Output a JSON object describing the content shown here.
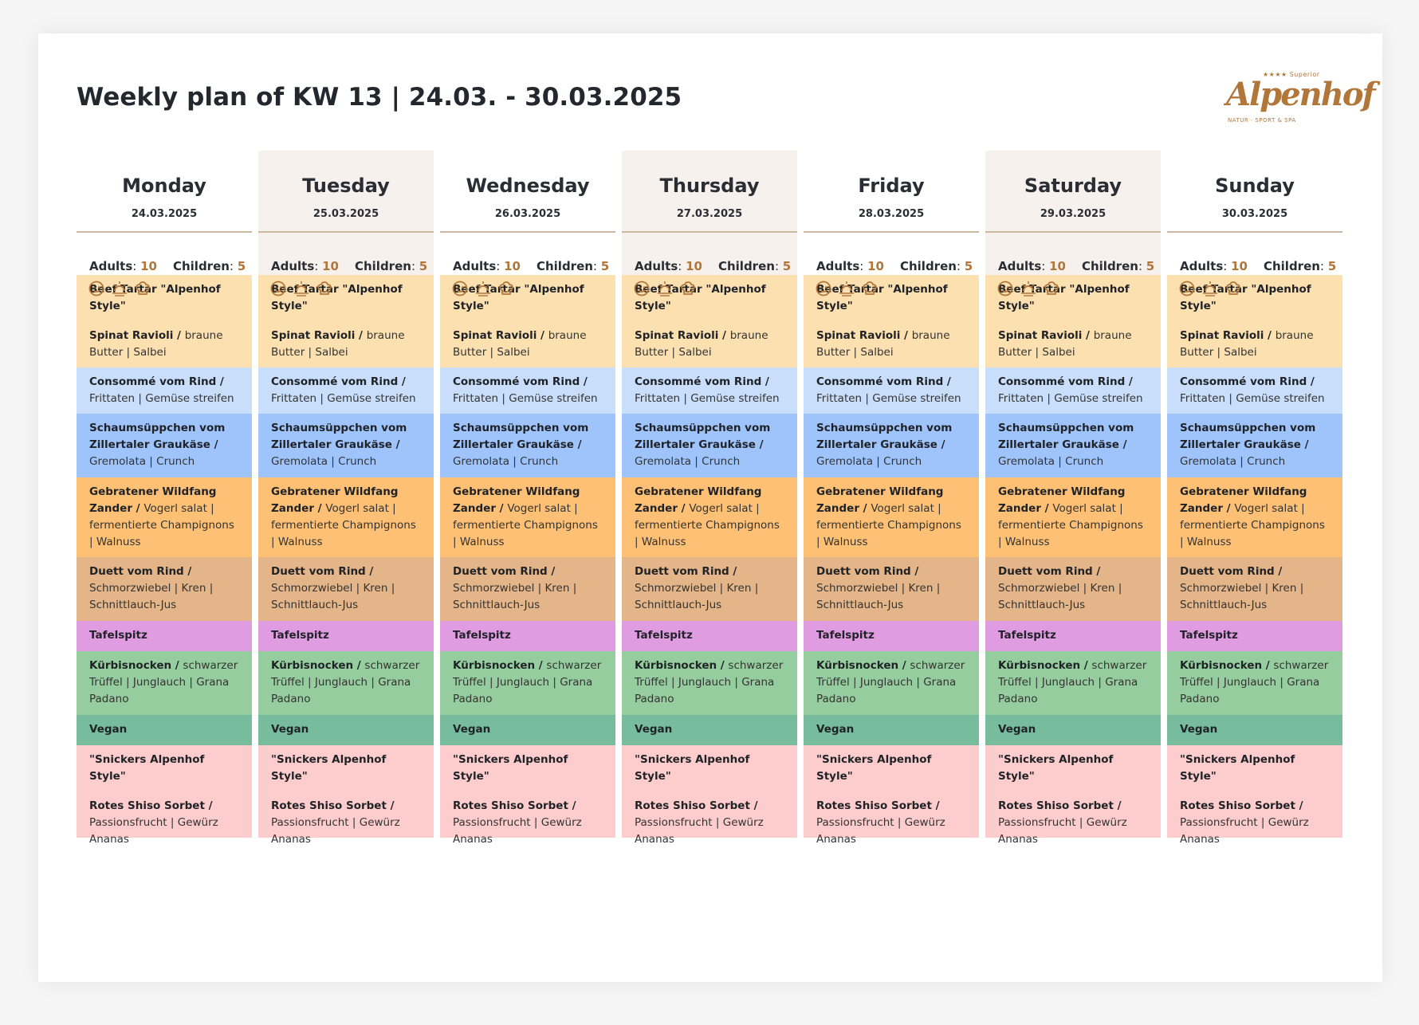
{
  "page": {
    "title": "Weekly plan of KW 13 | 24.03. - 30.03.2025",
    "logo": {
      "stars": "★★★★ Superior",
      "name": "Alpenhof",
      "tagline": "NATUR · SPORT & SPA",
      "color": "#b0763a"
    },
    "labels": {
      "adults": "Adults",
      "children": "Children"
    },
    "icons": [
      "smiley-icon",
      "sunrise-icon",
      "chef-hat-icon"
    ]
  },
  "days": [
    {
      "name": "Monday",
      "date": "24.03.2025",
      "adults": "10",
      "children": "5"
    },
    {
      "name": "Tuesday",
      "date": "25.03.2025",
      "adults": "10",
      "children": "5"
    },
    {
      "name": "Wednesday",
      "date": "26.03.2025",
      "adults": "10",
      "children": "5"
    },
    {
      "name": "Thursday",
      "date": "27.03.2025",
      "adults": "10",
      "children": "5"
    },
    {
      "name": "Friday",
      "date": "28.03.2025",
      "adults": "10",
      "children": "5"
    },
    {
      "name": "Saturday",
      "date": "29.03.2025",
      "adults": "10",
      "children": "5"
    },
    {
      "name": "Sunday",
      "date": "30.03.2025",
      "adults": "10",
      "children": "5"
    }
  ],
  "menu": [
    {
      "color": "#fce0b0",
      "items": [
        {
          "bold": "Beef Tartar \"Alpenhof Style\"",
          "rest": ""
        },
        {
          "bold": "Spinat Ravioli / ",
          "rest": "braune Butter | Salbei"
        }
      ]
    },
    {
      "color": "#c8defb",
      "items": [
        {
          "bold": "Consommé vom Rind / ",
          "rest": "Frittaten | Gemüse streifen"
        }
      ]
    },
    {
      "color": "#9ec4fb",
      "items": [
        {
          "bold": "Schaumsüppchen vom Zillertaler Graukäse / ",
          "rest": "Gremolata | Crunch"
        }
      ]
    },
    {
      "color": "#fdc074",
      "items": [
        {
          "bold": "Gebratener Wildfang Zander / ",
          "rest": "Vogerl salat | fermentierte Champignons | Walnuss"
        }
      ]
    },
    {
      "color": "#e3b588",
      "items": [
        {
          "bold": "Duett vom Rind / ",
          "rest": "Schmorzwiebel | Kren | Schnittlauch-Jus"
        }
      ]
    },
    {
      "color": "#e09ce0",
      "items": [
        {
          "bold": "Tafelspitz",
          "rest": ""
        }
      ]
    },
    {
      "color": "#96cd9f",
      "items": [
        {
          "bold": "Kürbisnocken / ",
          "rest": "schwarzer Trüffel | Junglauch | Grana Padano"
        }
      ]
    },
    {
      "color": "#78bc9e",
      "items": [
        {
          "bold": "Vegan",
          "rest": ""
        }
      ]
    },
    {
      "color": "#fdcccc",
      "items": [
        {
          "bold": "\"Snickers Alpenhof Style\"",
          "rest": ""
        },
        {
          "bold": "Rotes Shiso Sorbet / ",
          "rest": "Passionsfrucht | Gewürz Ananas"
        }
      ]
    }
  ]
}
